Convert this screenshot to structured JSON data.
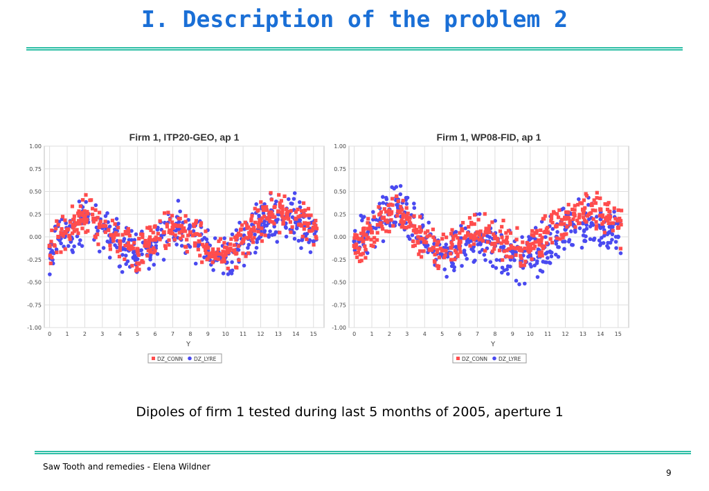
{
  "slide": {
    "title": "I. Description of the problem 2",
    "caption": "Dipoles of firm 1 tested during last 5 months of 2005, aperture 1",
    "footer_left": "Saw Tooth and remedies  - Elena Wildner",
    "page_number": "9",
    "colors": {
      "title": "#1a6fd6",
      "rule": "#2fbfa6",
      "conn": "#ff4d4d",
      "lyre": "#4a4af0"
    }
  },
  "chart_data": [
    {
      "type": "scatter",
      "title": "Firm 1, ITP20-GEO, ap 1",
      "xlabel": "Y",
      "ylabel": "",
      "xlim": [
        -0.3,
        15.6
      ],
      "ylim": [
        -1.0,
        1.0
      ],
      "x_ticks": [
        0,
        1,
        2,
        3,
        4,
        5,
        6,
        7,
        8,
        9,
        10,
        11,
        12,
        13,
        14,
        15
      ],
      "y_ticks": [
        "1.00",
        "0.75",
        "0.50",
        "0.25",
        "0.00",
        "-0.25",
        "-0.50",
        "-0.75",
        "-1.00"
      ],
      "grid": true,
      "legend": "bottom",
      "series": [
        {
          "name": "DZ_CONN",
          "color": "#ff4d4d",
          "marker": "square",
          "x": [
            0,
            0.5,
            1,
            1.5,
            2,
            2.5,
            3,
            3.5,
            4,
            4.5,
            5,
            5.5,
            6,
            6.5,
            7,
            7.5,
            8,
            8.5,
            9,
            9.5,
            10,
            10.5,
            11,
            11.5,
            12,
            12.5,
            13,
            13.5,
            14,
            14.5,
            15
          ],
          "y": [
            -0.1,
            0.0,
            0.08,
            0.15,
            0.22,
            0.2,
            0.12,
            0.02,
            -0.05,
            -0.12,
            -0.15,
            -0.1,
            -0.03,
            0.05,
            0.1,
            0.12,
            0.05,
            -0.05,
            -0.12,
            -0.18,
            -0.2,
            -0.15,
            -0.05,
            0.08,
            0.18,
            0.25,
            0.28,
            0.25,
            0.2,
            0.15,
            0.1
          ]
        },
        {
          "name": "DZ_LYRE",
          "color": "#4a4af0",
          "marker": "circle",
          "x": [
            0,
            0.5,
            1,
            1.5,
            2,
            2.5,
            3,
            3.5,
            4,
            4.5,
            5,
            5.5,
            6,
            6.5,
            7,
            7.5,
            8,
            8.5,
            9,
            9.5,
            10,
            10.5,
            11,
            11.5,
            12,
            12.5,
            13,
            13.5,
            14,
            14.5,
            15
          ],
          "y": [
            -0.12,
            -0.02,
            0.06,
            0.14,
            0.2,
            0.18,
            0.1,
            0.0,
            -0.08,
            -0.15,
            -0.18,
            -0.12,
            -0.05,
            0.03,
            0.08,
            0.1,
            0.03,
            -0.08,
            -0.15,
            -0.2,
            -0.22,
            -0.17,
            -0.07,
            0.06,
            0.15,
            0.22,
            0.25,
            0.22,
            0.18,
            0.12,
            -0.05
          ]
        }
      ]
    },
    {
      "type": "scatter",
      "title": "Firm 1, WP08-FID, ap 1",
      "xlabel": "Y",
      "ylabel": "",
      "xlim": [
        -0.3,
        15.6
      ],
      "ylim": [
        -1.0,
        1.0
      ],
      "x_ticks": [
        0,
        1,
        2,
        3,
        4,
        5,
        6,
        7,
        8,
        9,
        10,
        11,
        12,
        13,
        14,
        15
      ],
      "y_ticks": [
        "1.00",
        "0.75",
        "0.50",
        "0.25",
        "0.00",
        "-0.25",
        "-0.50",
        "-0.75",
        "-1.00"
      ],
      "grid": true,
      "legend": "bottom",
      "series": [
        {
          "name": "DZ_CONN",
          "color": "#ff4d4d",
          "marker": "square",
          "x": [
            0,
            0.5,
            1,
            1.5,
            2,
            2.5,
            3,
            3.5,
            4,
            4.5,
            5,
            5.5,
            6,
            6.5,
            7,
            7.5,
            8,
            8.5,
            9,
            9.5,
            10,
            10.5,
            11,
            11.5,
            12,
            12.5,
            13,
            13.5,
            14,
            14.5,
            15
          ],
          "y": [
            -0.1,
            -0.05,
            0.05,
            0.15,
            0.25,
            0.28,
            0.2,
            0.05,
            -0.05,
            -0.12,
            -0.15,
            -0.12,
            -0.05,
            0.02,
            0.05,
            0.05,
            0.0,
            -0.05,
            -0.12,
            -0.15,
            -0.12,
            -0.05,
            0.05,
            0.12,
            0.2,
            0.25,
            0.3,
            0.35,
            0.3,
            0.2,
            0.1
          ]
        },
        {
          "name": "DZ_LYRE",
          "color": "#4a4af0",
          "marker": "circle",
          "x": [
            0,
            0.5,
            1,
            1.5,
            2,
            2.5,
            3,
            3.5,
            4,
            4.5,
            5,
            5.5,
            6,
            6.5,
            7,
            7.5,
            8,
            8.5,
            9,
            9.5,
            10,
            10.5,
            11,
            11.5,
            12,
            12.5,
            13,
            13.5,
            14,
            14.5,
            15
          ],
          "y": [
            -0.05,
            0.0,
            0.1,
            0.2,
            0.3,
            0.32,
            0.22,
            0.05,
            -0.08,
            -0.15,
            -0.2,
            -0.18,
            -0.1,
            -0.05,
            -0.02,
            -0.05,
            -0.1,
            -0.15,
            -0.22,
            -0.25,
            -0.2,
            -0.15,
            -0.08,
            0.0,
            0.08,
            0.12,
            0.15,
            0.15,
            0.1,
            0.05,
            0.0
          ]
        }
      ]
    }
  ]
}
